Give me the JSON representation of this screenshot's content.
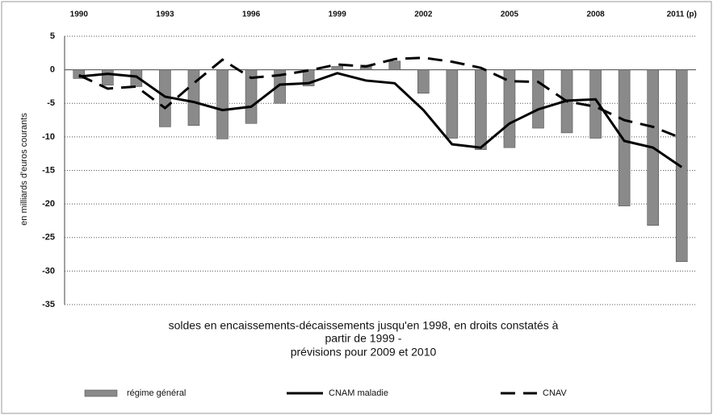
{
  "chart_data": {
    "type": "bar",
    "y_axis_label": "en milliards d'euros courants",
    "subtitle": [
      "soldes en encaissements-décaissements jusqu'en 1998, en droits constatés à",
      "partir de 1999 -",
      "prévisions  pour 2009 et 2010"
    ],
    "categories": [
      "1990",
      null,
      null,
      "1993",
      null,
      null,
      "1996",
      null,
      null,
      "1999",
      null,
      null,
      "2002",
      null,
      null,
      "2005",
      null,
      null,
      "2008",
      null,
      null,
      "2011 (p)"
    ],
    "series": [
      {
        "name": "régime général",
        "type": "bar",
        "color": "#8a8a8a",
        "values": [
          -1.3,
          -2.3,
          -2.5,
          -8.5,
          -8.3,
          -10.3,
          -8.0,
          -5.0,
          -2.4,
          0.5,
          0.7,
          1.3,
          -3.5,
          -10.2,
          -11.9,
          -11.6,
          -8.7,
          -9.4,
          -10.2,
          -20.3,
          -23.2,
          -28.6
        ]
      },
      {
        "name": "CNAM maladie",
        "type": "line",
        "color": "#000000",
        "values": [
          -1.0,
          -0.6,
          -1.0,
          -4.0,
          -4.8,
          -6.0,
          -5.5,
          -2.2,
          -2.0,
          -0.5,
          -1.6,
          -2.0,
          -6.0,
          -11.1,
          -11.6,
          -8.0,
          -5.9,
          -4.6,
          -4.4,
          -10.6,
          -11.6,
          -14.5
        ]
      },
      {
        "name": "CNAV",
        "type": "dashed",
        "color": "#000000",
        "values": [
          -0.8,
          -2.8,
          -2.5,
          -5.7,
          -2.0,
          1.5,
          -1.2,
          -0.8,
          -0.1,
          0.8,
          0.5,
          1.6,
          1.8,
          1.2,
          0.3,
          -1.7,
          -1.8,
          -4.7,
          -5.5,
          -7.5,
          -8.5,
          -10.2
        ]
      }
    ],
    "ylim": [
      -35,
      5
    ],
    "yticks": [
      -35,
      -30,
      -25,
      -20,
      -15,
      -10,
      -5,
      0,
      5
    ],
    "grid": true
  }
}
